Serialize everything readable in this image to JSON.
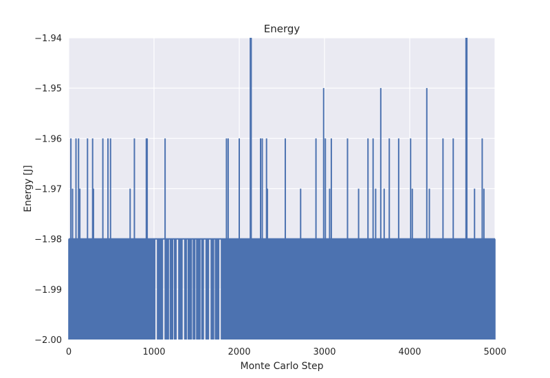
{
  "chart_data": {
    "type": "line",
    "title": "Energy",
    "xlabel": "Monte Carlo Step",
    "ylabel": "Energy [J]",
    "xlim": [
      0,
      5000
    ],
    "ylim": [
      -2.0,
      -1.94
    ],
    "xticks": [
      0,
      1000,
      2000,
      3000,
      4000,
      5000
    ],
    "yticks": [
      -2.0,
      -1.99,
      -1.98,
      -1.97,
      -1.96,
      -1.95,
      -1.94
    ],
    "xtick_labels": [
      "0",
      "1000",
      "2000",
      "3000",
      "4000",
      "5000"
    ],
    "ytick_labels": [
      "−2.00",
      "−1.99",
      "−1.98",
      "−1.97",
      "−1.96",
      "−1.95",
      "−1.94"
    ],
    "grid": true,
    "style": {
      "background": "#EAEAF2",
      "grid_color": "#FFFFFF",
      "line_color": "#4C72B0"
    },
    "series": [
      {
        "baseline": -1.98,
        "floor": -2.0,
        "low_run_steps": [
          [
            0,
            10
          ],
          [
            30,
            42
          ],
          [
            70,
            80
          ],
          [
            110,
            120
          ],
          [
            145,
            150
          ],
          [
            200,
            210
          ],
          [
            250,
            258
          ],
          [
            300,
            310
          ],
          [
            350,
            362
          ],
          [
            420,
            428
          ],
          [
            470,
            480
          ],
          [
            530,
            540
          ],
          [
            590,
            598
          ],
          [
            650,
            660
          ],
          [
            700,
            712
          ],
          [
            780,
            790
          ],
          [
            850,
            860
          ],
          [
            920,
            930
          ],
          [
            960,
            1010
          ],
          [
            1040,
            1100
          ],
          [
            1130,
            1170
          ],
          [
            1190,
            1220
          ],
          [
            1240,
            1260
          ],
          [
            1290,
            1330
          ],
          [
            1360,
            1380
          ],
          [
            1400,
            1440
          ],
          [
            1460,
            1480
          ],
          [
            1500,
            1540
          ],
          [
            1560,
            1580
          ],
          [
            1610,
            1640
          ],
          [
            1670,
            1700
          ],
          [
            1720,
            1760
          ],
          [
            1790,
            1800
          ],
          [
            1880,
            1890
          ],
          [
            1930,
            1945
          ],
          [
            2010,
            2030
          ],
          [
            2080,
            2090
          ],
          [
            2170,
            2180
          ],
          [
            2280,
            2290
          ],
          [
            2360,
            2380
          ],
          [
            2450,
            2460
          ],
          [
            2560,
            2575
          ],
          [
            2620,
            2630
          ],
          [
            2680,
            2695
          ],
          [
            2760,
            2770
          ],
          [
            2830,
            2840
          ],
          [
            2880,
            2890
          ],
          [
            2950,
            2960
          ],
          [
            3040,
            3055
          ],
          [
            3110,
            3120
          ],
          [
            3180,
            3190
          ],
          [
            3230,
            3240
          ],
          [
            3310,
            3320
          ],
          [
            3380,
            3390
          ],
          [
            3460,
            3470
          ],
          [
            3550,
            3560
          ],
          [
            3620,
            3630
          ],
          [
            3720,
            3730
          ],
          [
            3800,
            3810
          ],
          [
            3900,
            3910
          ],
          [
            3960,
            3970
          ],
          [
            4060,
            4070
          ],
          [
            4140,
            4150
          ],
          [
            4230,
            4240
          ],
          [
            4300,
            4310
          ],
          [
            4350,
            4360
          ],
          [
            4430,
            4440
          ],
          [
            4480,
            4490
          ],
          [
            4550,
            4560
          ],
          [
            4600,
            4615
          ],
          [
            4640,
            4650
          ],
          [
            4700,
            4710
          ],
          [
            4780,
            4790
          ],
          [
            4830,
            4840
          ],
          [
            4900,
            4910
          ],
          [
            4950,
            4960
          ],
          [
            4990,
            5000
          ]
        ],
        "dense_ranges": [
          [
            0,
            960
          ],
          [
            1800,
            5000
          ]
        ],
        "spikes": [
          {
            "x": 25,
            "y": -1.96
          },
          {
            "x": 45,
            "y": -1.97
          },
          {
            "x": 85,
            "y": -1.96
          },
          {
            "x": 115,
            "y": -1.96
          },
          {
            "x": 130,
            "y": -1.97
          },
          {
            "x": 220,
            "y": -1.96
          },
          {
            "x": 280,
            "y": -1.96
          },
          {
            "x": 290,
            "y": -1.97
          },
          {
            "x": 400,
            "y": -1.96
          },
          {
            "x": 460,
            "y": -1.96
          },
          {
            "x": 490,
            "y": -1.96
          },
          {
            "x": 720,
            "y": -1.97
          },
          {
            "x": 770,
            "y": -1.96
          },
          {
            "x": 910,
            "y": -1.96
          },
          {
            "x": 920,
            "y": -1.96
          },
          {
            "x": 1130,
            "y": -1.96
          },
          {
            "x": 1850,
            "y": -1.96
          },
          {
            "x": 1870,
            "y": -1.96
          },
          {
            "x": 2000,
            "y": -1.96
          },
          {
            "x": 2130,
            "y": -1.94
          },
          {
            "x": 2140,
            "y": -1.94
          },
          {
            "x": 2250,
            "y": -1.96
          },
          {
            "x": 2270,
            "y": -1.96
          },
          {
            "x": 2320,
            "y": -1.96
          },
          {
            "x": 2330,
            "y": -1.97
          },
          {
            "x": 2540,
            "y": -1.96
          },
          {
            "x": 2720,
            "y": -1.97
          },
          {
            "x": 2900,
            "y": -1.96
          },
          {
            "x": 2990,
            "y": -1.95
          },
          {
            "x": 3010,
            "y": -1.96
          },
          {
            "x": 3060,
            "y": -1.97
          },
          {
            "x": 3080,
            "y": -1.96
          },
          {
            "x": 3270,
            "y": -1.96
          },
          {
            "x": 3400,
            "y": -1.97
          },
          {
            "x": 3510,
            "y": -1.96
          },
          {
            "x": 3570,
            "y": -1.96
          },
          {
            "x": 3600,
            "y": -1.97
          },
          {
            "x": 3660,
            "y": -1.95
          },
          {
            "x": 3700,
            "y": -1.97
          },
          {
            "x": 3760,
            "y": -1.96
          },
          {
            "x": 3870,
            "y": -1.96
          },
          {
            "x": 4010,
            "y": -1.96
          },
          {
            "x": 4030,
            "y": -1.97
          },
          {
            "x": 4200,
            "y": -1.95
          },
          {
            "x": 4230,
            "y": -1.97
          },
          {
            "x": 4390,
            "y": -1.96
          },
          {
            "x": 4510,
            "y": -1.96
          },
          {
            "x": 4660,
            "y": -1.94
          },
          {
            "x": 4670,
            "y": -1.94
          },
          {
            "x": 4760,
            "y": -1.97
          },
          {
            "x": 4850,
            "y": -1.96
          },
          {
            "x": 4870,
            "y": -1.97
          }
        ]
      }
    ]
  }
}
